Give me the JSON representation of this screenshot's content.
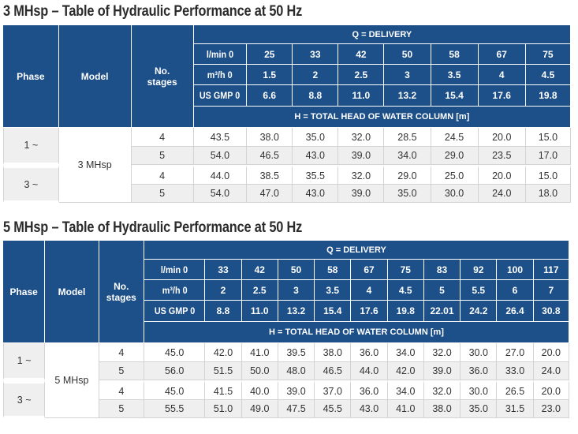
{
  "tables": [
    {
      "title": "3 MHsp – Table of Hydraulic Performance at 50 Hz",
      "headers": {
        "phase": "Phase",
        "model": "Model",
        "stages": "No. stages",
        "delivery": "Q = DELIVERY",
        "head": "H = TOTAL HEAD OF WATER COLUMN [m]"
      },
      "flow_rows": [
        {
          "label": "l/min 0",
          "values": [
            "25",
            "33",
            "42",
            "50",
            "58",
            "67",
            "75"
          ]
        },
        {
          "label": "m³/h 0",
          "values": [
            "1.5",
            "2",
            "2.5",
            "3",
            "3.5",
            "4",
            "4.5"
          ]
        },
        {
          "label": "US GMP 0",
          "values": [
            "6.6",
            "8.8",
            "11.0",
            "13.2",
            "15.4",
            "17.6",
            "19.8"
          ]
        }
      ],
      "model": "3 MHsp",
      "groups": [
        {
          "phase": "1 ~",
          "rows": [
            {
              "stages": "4",
              "values": [
                "43.5",
                "38.0",
                "35.0",
                "32.0",
                "28.5",
                "24.5",
                "20.0",
                "15.0"
              ]
            },
            {
              "stages": "5",
              "values": [
                "54.0",
                "46.5",
                "43.0",
                "39.0",
                "34.0",
                "29.0",
                "23.5",
                "17.0"
              ]
            }
          ]
        },
        {
          "phase": "3 ~",
          "rows": [
            {
              "stages": "4",
              "values": [
                "44.0",
                "38.5",
                "35.5",
                "32.0",
                "29.0",
                "25.0",
                "20.0",
                "15.0"
              ]
            },
            {
              "stages": "5",
              "values": [
                "54.0",
                "47.0",
                "43.0",
                "39.0",
                "35.0",
                "30.0",
                "24.0",
                "18.0"
              ]
            }
          ]
        }
      ]
    },
    {
      "title": "5 MHsp – Table of Hydraulic Performance at 50 Hz",
      "headers": {
        "phase": "Phase",
        "model": "Model",
        "stages": "No. stages",
        "delivery": "Q = DELIVERY",
        "head": "H = TOTAL HEAD OF WATER COLUMN [m]"
      },
      "flow_rows": [
        {
          "label": "l/min 0",
          "values": [
            "33",
            "42",
            "50",
            "58",
            "67",
            "75",
            "83",
            "92",
            "100",
            "117"
          ]
        },
        {
          "label": "m³/h 0",
          "values": [
            "2",
            "2.5",
            "3",
            "3.5",
            "4",
            "4.5",
            "5",
            "5.5",
            "6",
            "7"
          ]
        },
        {
          "label": "US GMP 0",
          "values": [
            "8.8",
            "11.0",
            "13.2",
            "15.4",
            "17.6",
            "19.8",
            "22.01",
            "24.2",
            "26.4",
            "30.8"
          ]
        }
      ],
      "model": "5 MHsp",
      "groups": [
        {
          "phase": "1 ~",
          "rows": [
            {
              "stages": "4",
              "values": [
                "45.0",
                "42.0",
                "41.0",
                "39.5",
                "38.0",
                "36.0",
                "34.0",
                "32.0",
                "30.0",
                "27.0",
                "20.0"
              ]
            },
            {
              "stages": "5",
              "values": [
                "56.0",
                "51.5",
                "50.0",
                "48.0",
                "46.5",
                "44.0",
                "42.0",
                "39.0",
                "36.0",
                "33.0",
                "24.0"
              ]
            }
          ]
        },
        {
          "phase": "3 ~",
          "rows": [
            {
              "stages": "4",
              "values": [
                "45.0",
                "41.5",
                "40.0",
                "39.0",
                "37.0",
                "36.0",
                "34.0",
                "32.0",
                "30.0",
                "26.5",
                "20.0"
              ]
            },
            {
              "stages": "5",
              "values": [
                "55.5",
                "51.0",
                "49.0",
                "47.5",
                "45.5",
                "43.0",
                "41.0",
                "38.0",
                "35.0",
                "31.5",
                "23.0"
              ]
            }
          ]
        }
      ]
    }
  ],
  "colors": {
    "header_bg": "#1d4f89",
    "header_text": "#ffffff",
    "alt_row": "#efefef",
    "grid": "#d3d3d3"
  }
}
